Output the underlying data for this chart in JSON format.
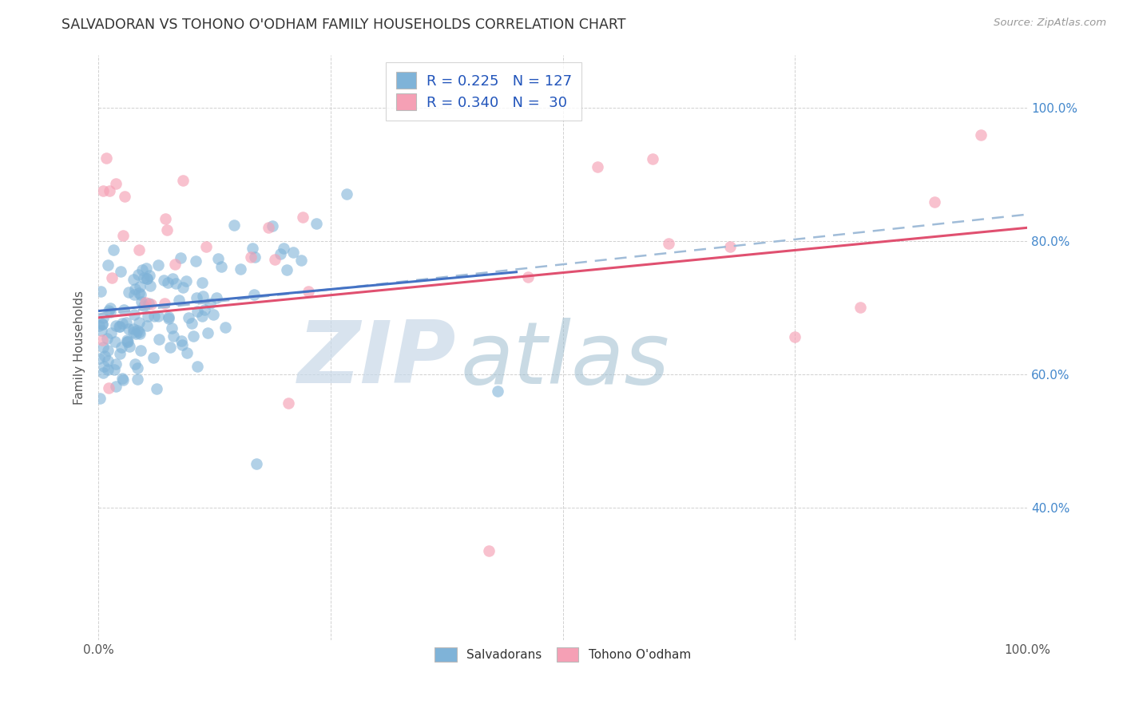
{
  "title": "SALVADORAN VS TOHONO O'ODHAM FAMILY HOUSEHOLDS CORRELATION CHART",
  "source": "Source: ZipAtlas.com",
  "ylabel": "Family Households",
  "blue_color": "#7fb3d8",
  "pink_color": "#f5a0b5",
  "blue_line_color": "#4472c4",
  "pink_line_color": "#e05070",
  "grey_dash_color": "#a0bcd8",
  "legend_text_color": "#2255bb",
  "right_axis_color": "#4488cc",
  "xlim": [
    0.0,
    1.0
  ],
  "ylim": [
    0.2,
    1.08
  ],
  "y_ticks": [
    0.4,
    0.6,
    0.8,
    1.0
  ],
  "y_tick_labels": [
    "40.0%",
    "60.0%",
    "80.0%",
    "100.0%"
  ],
  "x_ticks": [
    0.0,
    0.25,
    0.5,
    0.75,
    1.0
  ],
  "x_tick_labels": [
    "0.0%",
    "",
    "",
    "",
    "100.0%"
  ],
  "sal_R": 0.225,
  "sal_N": 127,
  "toh_R": 0.34,
  "toh_N": 30,
  "watermark_zip": "ZIP",
  "watermark_atlas": "atlas",
  "watermark_color_zip": "#c8d8e8",
  "watermark_color_atlas": "#9dbdcf"
}
